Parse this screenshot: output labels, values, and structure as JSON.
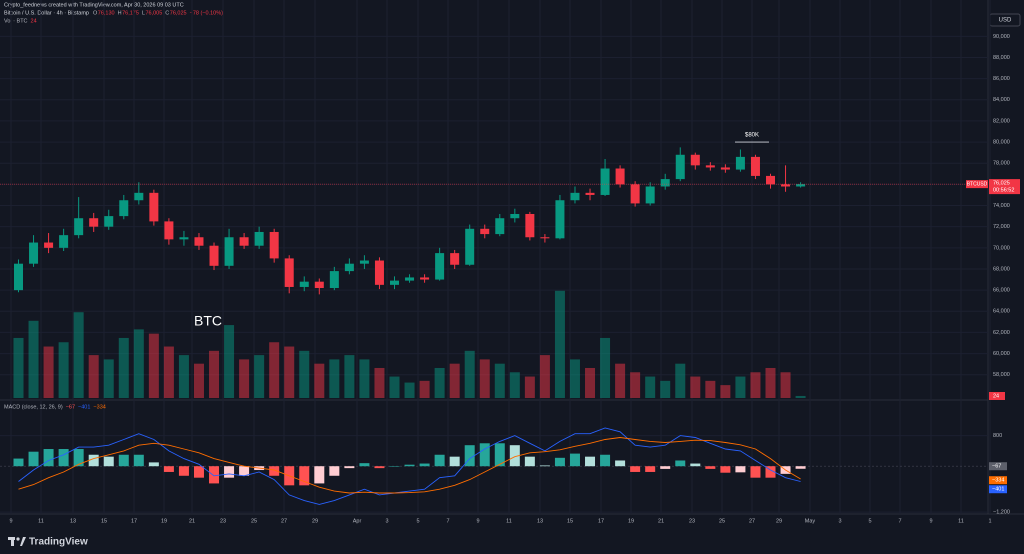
{
  "header": {
    "credit": "Crypto_feednews created with TradingView.com, Apr 30, 2026 09:03 UTC",
    "symbol": "Bitcoin / U.S. Dollar · 4h · Bitstamp",
    "ohlc": [
      {
        "key": "O",
        "value": "76,130"
      },
      {
        "key": "H",
        "value": "76,175"
      },
      {
        "key": "L",
        "value": "76,005"
      },
      {
        "key": "C",
        "value": "76,025"
      }
    ],
    "change": "−78 (−0.10%)",
    "volume_name": "Vol · BTC",
    "volume_value": "24"
  },
  "footer": "TradingView",
  "chart_data": [
    {
      "type": "candlestick",
      "currency": "USD",
      "up_color": "#089981",
      "down_color": "#f23645",
      "grid": true,
      "open": [
        66000,
        68500,
        70500,
        70000,
        71200,
        72800,
        72000,
        73000,
        74500,
        75200,
        72500,
        70800,
        71000,
        70200,
        68300,
        71000,
        70200,
        71500,
        69000,
        66300,
        66800,
        66200,
        67800,
        68500,
        68800,
        66500,
        66900,
        67200,
        67000,
        69500,
        68400,
        71800,
        71300,
        72800,
        73200,
        71000,
        70900,
        74500,
        75200,
        75000,
        77500,
        76000,
        74200,
        75800,
        76500,
        78800,
        77800,
        77600,
        77400,
        78600,
        76800,
        76000,
        75800
      ],
      "high": [
        68900,
        71200,
        71400,
        71800,
        74800,
        73300,
        73600,
        75000,
        76200,
        75500,
        72800,
        71600,
        71400,
        70500,
        71800,
        71400,
        72000,
        71800,
        69300,
        67300,
        67100,
        68200,
        69000,
        69300,
        69100,
        67300,
        67500,
        67500,
        70000,
        69800,
        72200,
        72200,
        73200,
        73700,
        73400,
        71300,
        75000,
        75800,
        75600,
        78400,
        77800,
        76300,
        76200,
        77000,
        79500,
        79000,
        78100,
        77900,
        79300,
        78800,
        77000,
        77800,
        76200
      ],
      "low": [
        65800,
        68200,
        69500,
        69700,
        70900,
        71500,
        71700,
        72700,
        74100,
        72100,
        70300,
        70200,
        69800,
        67900,
        68000,
        69900,
        69900,
        68600,
        65700,
        65900,
        65600,
        66000,
        67500,
        68000,
        66100,
        66100,
        66700,
        66700,
        66900,
        68000,
        68300,
        70900,
        71100,
        72400,
        70700,
        70500,
        70800,
        74200,
        74500,
        74900,
        75700,
        73900,
        74000,
        75500,
        76300,
        77400,
        77300,
        77100,
        77200,
        76500,
        75600,
        75300,
        75700
      ],
      "close": [
        68500,
        70500,
        70000,
        71200,
        72800,
        72000,
        73000,
        74500,
        75200,
        72500,
        70800,
        71000,
        70200,
        68300,
        71000,
        70200,
        71500,
        69000,
        66300,
        66800,
        66200,
        67800,
        68500,
        68800,
        66500,
        66900,
        67200,
        67000,
        69500,
        68400,
        71800,
        71300,
        72800,
        73200,
        71000,
        70900,
        74500,
        75200,
        75000,
        77500,
        76000,
        74200,
        75800,
        76500,
        78800,
        77800,
        77600,
        77400,
        78600,
        76800,
        76000,
        75800,
        76025
      ],
      "volume": [
        700,
        900,
        600,
        650,
        1000,
        500,
        450,
        700,
        800,
        750,
        600,
        500,
        400,
        550,
        850,
        450,
        500,
        650,
        600,
        550,
        400,
        450,
        500,
        450,
        350,
        250,
        180,
        200,
        350,
        400,
        550,
        450,
        400,
        300,
        250,
        500,
        1250,
        450,
        350,
        700,
        400,
        300,
        250,
        200,
        400,
        250,
        200,
        150,
        250,
        300,
        350,
        300,
        24
      ],
      "vlim": [
        0,
        4500
      ],
      "ylim": [
        55800,
        92300
      ],
      "yticks": [
        {
          "value": 58000,
          "label": "58,000"
        },
        {
          "value": 60000,
          "label": "60,000"
        },
        {
          "value": 62000,
          "label": "62,000"
        },
        {
          "value": 64000,
          "label": "64,000"
        },
        {
          "value": 66000,
          "label": "66,000"
        },
        {
          "value": 68000,
          "label": "68,000"
        },
        {
          "value": 70000,
          "label": "70,000"
        },
        {
          "value": 72000,
          "label": "72,000"
        },
        {
          "value": 74000,
          "label": "74,000"
        },
        {
          "value": 76000,
          "label": "76,000"
        },
        {
          "value": 78000,
          "label": "78,000"
        },
        {
          "value": 80000,
          "label": "80,000"
        },
        {
          "value": 82000,
          "label": "82,000"
        },
        {
          "value": 84000,
          "label": "84,000"
        },
        {
          "value": 86000,
          "label": "86,000"
        },
        {
          "value": 88000,
          "label": "88,000"
        },
        {
          "value": 90000,
          "label": "90,000"
        }
      ],
      "last_price": {
        "value": 76025,
        "label": "76,025"
      },
      "last_symbol": "BTCUSD",
      "countdown": "00:56:52",
      "annotations": [
        {
          "text": "BTC"
        },
        {
          "text": "$80K",
          "value": 80000
        }
      ],
      "time_labels": [
        "9",
        "11",
        "13",
        "15",
        "17",
        "19",
        "21",
        "23",
        "25",
        "27",
        "29",
        "Apr",
        "3",
        "5",
        "7",
        "9",
        "11",
        "13",
        "15",
        "17",
        "19",
        "21",
        "23",
        "25",
        "27",
        "29",
        "May",
        "3",
        "5",
        "7",
        "9",
        "11",
        "1"
      ]
    },
    {
      "type": "macd",
      "title": "MACD (close, 12, 26, 9)",
      "ylim": [
        -1250,
        1680
      ],
      "yticks": [
        800,
        {
          "value": -1200,
          "label": "−1,200"
        }
      ],
      "series": [
        {
          "name": "MACD",
          "color": "#2962ff",
          "last_label": "−401",
          "values": [
            -400,
            -100,
            150,
            300,
            500,
            500,
            550,
            700,
            850,
            700,
            400,
            200,
            50,
            -250,
            -200,
            -250,
            -150,
            -350,
            -750,
            -900,
            -1000,
            -900,
            -750,
            -600,
            -750,
            -700,
            -650,
            -600,
            -300,
            -250,
            200,
            450,
            650,
            800,
            600,
            400,
            650,
            850,
            850,
            1000,
            900,
            550,
            500,
            550,
            800,
            750,
            600,
            450,
            400,
            150,
            -100,
            -300,
            -401
          ]
        },
        {
          "name": "Signal",
          "color": "#ff6d00",
          "last_label": "−334",
          "values": [
            -600,
            -480,
            -300,
            -150,
            50,
            200,
            300,
            400,
            550,
            600,
            550,
            450,
            350,
            200,
            100,
            0,
            -50,
            -100,
            -250,
            -400,
            -550,
            -650,
            -700,
            -680,
            -700,
            -700,
            -690,
            -670,
            -600,
            -500,
            -350,
            -150,
            50,
            250,
            350,
            380,
            430,
            520,
            600,
            700,
            750,
            700,
            650,
            620,
            650,
            680,
            670,
            620,
            560,
            450,
            200,
            -100,
            -334
          ]
        },
        {
          "name": "Histogram",
          "last_label": "−67",
          "values": [
            200,
            380,
            450,
            450,
            450,
            300,
            250,
            300,
            300,
            100,
            -150,
            -250,
            -300,
            -450,
            -300,
            -250,
            -100,
            -250,
            -500,
            -500,
            -450,
            -250,
            -50,
            80,
            -50,
            0,
            40,
            70,
            300,
            250,
            550,
            600,
            600,
            550,
            250,
            20,
            220,
            330,
            250,
            300,
            150,
            -150,
            -150,
            -70,
            150,
            70,
            -70,
            -170,
            -160,
            -300,
            -300,
            -200,
            -67
          ]
        }
      ]
    }
  ]
}
